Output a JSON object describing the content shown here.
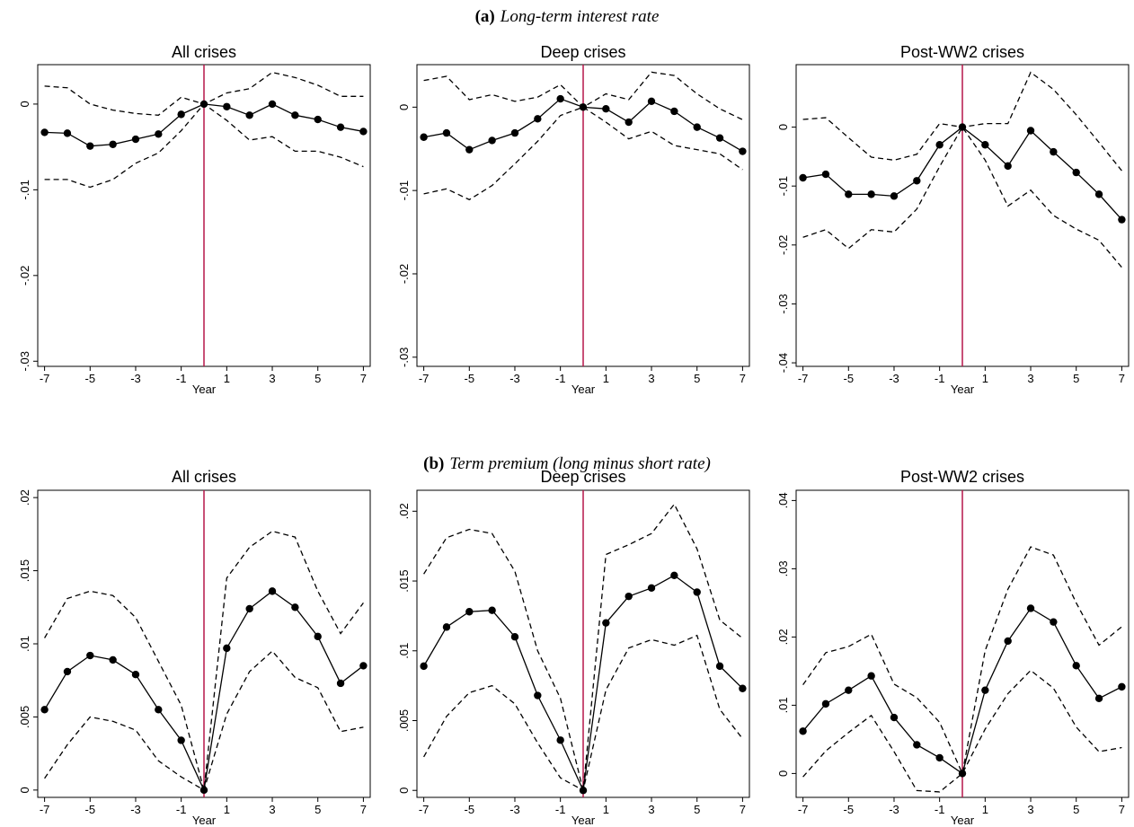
{
  "sections": [
    {
      "label": "(a)",
      "title": "Long-term interest rate"
    },
    {
      "label": "(b)",
      "title": "Term premium (long minus short rate)"
    }
  ],
  "chart_data": [
    {
      "type": "line",
      "title": "All crises",
      "xlabel": "Year",
      "x": [
        -7,
        -6,
        -5,
        -4,
        -3,
        -2,
        -1,
        0,
        1,
        2,
        3,
        4,
        5,
        6,
        7
      ],
      "xlim": [
        -7.3,
        7.3
      ],
      "xticks": [
        -7,
        -5,
        -3,
        -1,
        1,
        3,
        5,
        7
      ],
      "ylim": [
        -0.0306,
        0.0046
      ],
      "yticks": [
        {
          "value": -0.03,
          "label": "-.03"
        },
        {
          "value": -0.02,
          "label": "-.02"
        },
        {
          "value": -0.01,
          "label": "-.01"
        },
        0
      ],
      "vline": 0,
      "vline_color": "#b5174a",
      "series": [
        {
          "color": "#000000",
          "style": "solid",
          "markers": true,
          "values": [
            -0.0033,
            -0.0034,
            -0.0049,
            -0.0047,
            -0.0041,
            -0.0035,
            -0.0012,
            0,
            -0.0003,
            -0.0013,
            0,
            -0.0013,
            -0.0018,
            -0.0027,
            -0.0032
          ]
        },
        {
          "color": "#000000",
          "style": "dashed",
          "markers": false,
          "values": [
            0.0021,
            0.0019,
            0,
            -0.0007,
            -0.0011,
            -0.0013,
            0.0008,
            0,
            0.0013,
            0.0018,
            0.0037,
            0.0031,
            0.0022,
            0.0009,
            0.0009
          ]
        },
        {
          "color": "#000000",
          "style": "dashed",
          "markers": false,
          "values": [
            -0.0088,
            -0.0088,
            -0.0097,
            -0.0088,
            -0.0069,
            -0.0057,
            -0.0031,
            0,
            -0.0019,
            -0.0042,
            -0.0038,
            -0.0055,
            -0.0055,
            -0.0062,
            -0.0073
          ]
        }
      ]
    },
    {
      "type": "line",
      "title": "Deep crises",
      "xlabel": "Year",
      "x": [
        -7,
        -6,
        -5,
        -4,
        -3,
        -2,
        -1,
        0,
        1,
        2,
        3,
        4,
        5,
        6,
        7
      ],
      "xlim": [
        -7.3,
        7.3
      ],
      "xticks": [
        -7,
        -5,
        -3,
        -1,
        1,
        3,
        5,
        7
      ],
      "ylim": [
        -0.0311,
        0.0051
      ],
      "yticks": [
        {
          "value": -0.03,
          "label": "-.03"
        },
        {
          "value": -0.02,
          "label": "-.02"
        },
        {
          "value": -0.01,
          "label": "-.01"
        },
        0
      ],
      "vline": 0,
      "vline_color": "#b5174a",
      "series": [
        {
          "color": "#000000",
          "style": "solid",
          "markers": true,
          "values": [
            -0.0036,
            -0.0031,
            -0.0051,
            -0.004,
            -0.0031,
            -0.0014,
            0.001,
            0,
            -0.0002,
            -0.0018,
            0.0007,
            -0.0005,
            -0.0024,
            -0.0037,
            -0.0053
          ]
        },
        {
          "color": "#000000",
          "style": "dashed",
          "markers": false,
          "values": [
            0.0032,
            0.0037,
            0.0009,
            0.0015,
            0.0007,
            0.0012,
            0.0027,
            0,
            0.0016,
            0.0009,
            0.0042,
            0.0038,
            0.0016,
            -0.0002,
            -0.0015
          ]
        },
        {
          "color": "#000000",
          "style": "dashed",
          "markers": false,
          "values": [
            -0.0104,
            -0.0098,
            -0.0111,
            -0.0094,
            -0.0068,
            -0.0041,
            -0.001,
            0,
            -0.0018,
            -0.0038,
            -0.0029,
            -0.0046,
            -0.0051,
            -0.0056,
            -0.0075
          ]
        }
      ]
    },
    {
      "type": "line",
      "title": "Post-WW2 crises",
      "xlabel": "Year",
      "x": [
        -7,
        -6,
        -5,
        -4,
        -3,
        -2,
        -1,
        0,
        1,
        2,
        3,
        4,
        5,
        6,
        7
      ],
      "xlim": [
        -7.3,
        7.3
      ],
      "xticks": [
        -7,
        -5,
        -3,
        -1,
        1,
        3,
        5,
        7
      ],
      "ylim": [
        -0.0406,
        0.0106
      ],
      "yticks": [
        {
          "value": -0.04,
          "label": "-.04"
        },
        {
          "value": -0.03,
          "label": "-.03"
        },
        {
          "value": -0.02,
          "label": "-.02"
        },
        {
          "value": -0.01,
          "label": "-.01"
        },
        0
      ],
      "vline": 0,
      "vline_color": "#b5174a",
      "series": [
        {
          "color": "#000000",
          "style": "solid",
          "markers": true,
          "values": [
            -0.0086,
            -0.008,
            -0.0114,
            -0.0114,
            -0.0117,
            -0.0091,
            -0.003,
            0,
            -0.003,
            -0.0066,
            -0.0006,
            -0.0042,
            -0.0077,
            -0.0114,
            -0.0157
          ]
        },
        {
          "color": "#000000",
          "style": "dashed",
          "markers": false,
          "values": [
            0.0013,
            0.0016,
            -0.0018,
            -0.0051,
            -0.0056,
            -0.0046,
            0.0006,
            0,
            0.0006,
            0.0006,
            0.0093,
            0.0064,
            0.0021,
            -0.0026,
            -0.0074
          ]
        },
        {
          "color": "#000000",
          "style": "dashed",
          "markers": false,
          "values": [
            -0.0187,
            -0.0174,
            -0.0206,
            -0.0174,
            -0.0178,
            -0.0139,
            -0.0067,
            0,
            -0.0056,
            -0.0134,
            -0.0107,
            -0.015,
            -0.0173,
            -0.0192,
            -0.0238
          ]
        }
      ]
    },
    {
      "type": "line",
      "title": "All crises",
      "xlabel": "Year",
      "x": [
        -7,
        -6,
        -5,
        -4,
        -3,
        -2,
        -1,
        0,
        1,
        2,
        3,
        4,
        5,
        6,
        7
      ],
      "xlim": [
        -7.3,
        7.3
      ],
      "xticks": [
        -7,
        -5,
        -3,
        -1,
        1,
        3,
        5,
        7
      ],
      "ylim": [
        -0.0005,
        0.0205
      ],
      "yticks": [
        0,
        {
          "value": 0.005,
          "label": ".005"
        },
        {
          "value": 0.01,
          "label": ".01"
        },
        {
          "value": 0.015,
          "label": ".015"
        },
        {
          "value": 0.02,
          "label": ".02"
        }
      ],
      "vline": 0,
      "vline_color": "#b5174a",
      "series": [
        {
          "color": "#000000",
          "style": "solid",
          "markers": true,
          "values": [
            0.0055,
            0.0081,
            0.0092,
            0.0089,
            0.0079,
            0.0055,
            0.0034,
            0,
            0.0097,
            0.0124,
            0.0136,
            0.0125,
            0.0105,
            0.0073,
            0.0085
          ]
        },
        {
          "color": "#000000",
          "style": "dashed",
          "markers": false,
          "values": [
            0.0104,
            0.0131,
            0.0136,
            0.0133,
            0.0118,
            0.0088,
            0.0058,
            0,
            0.0145,
            0.0166,
            0.0177,
            0.0173,
            0.0136,
            0.0107,
            0.0128
          ]
        },
        {
          "color": "#000000",
          "style": "dashed",
          "markers": false,
          "values": [
            0.0008,
            0.0031,
            0.005,
            0.0047,
            0.0041,
            0.002,
            0.0009,
            0,
            0.0052,
            0.0081,
            0.0095,
            0.0077,
            0.007,
            0.004,
            0.0043
          ]
        }
      ]
    },
    {
      "type": "line",
      "title": "Deep crises",
      "xlabel": "Year",
      "x": [
        -7,
        -6,
        -5,
        -4,
        -3,
        -2,
        -1,
        0,
        1,
        2,
        3,
        4,
        5,
        6,
        7
      ],
      "xlim": [
        -7.3,
        7.3
      ],
      "xticks": [
        -7,
        -5,
        -3,
        -1,
        1,
        3,
        5,
        7
      ],
      "ylim": [
        -0.0005,
        0.0215
      ],
      "yticks": [
        0,
        {
          "value": 0.005,
          "label": ".005"
        },
        {
          "value": 0.01,
          "label": ".01"
        },
        {
          "value": 0.015,
          "label": ".015"
        },
        {
          "value": 0.02,
          "label": ".02"
        }
      ],
      "vline": 0,
      "vline_color": "#b5174a",
      "series": [
        {
          "color": "#000000",
          "style": "solid",
          "markers": true,
          "values": [
            0.0089,
            0.0117,
            0.0128,
            0.0129,
            0.011,
            0.0068,
            0.0036,
            0,
            0.012,
            0.0139,
            0.0145,
            0.0154,
            0.0142,
            0.0089,
            0.0073
          ]
        },
        {
          "color": "#000000",
          "style": "dashed",
          "markers": false,
          "values": [
            0.0155,
            0.0181,
            0.0187,
            0.0184,
            0.0157,
            0.01,
            0.0066,
            0,
            0.0169,
            0.0176,
            0.0184,
            0.0205,
            0.0173,
            0.0122,
            0.0109
          ]
        },
        {
          "color": "#000000",
          "style": "dashed",
          "markers": false,
          "values": [
            0.0024,
            0.0053,
            0.007,
            0.0075,
            0.0062,
            0.0034,
            0.0009,
            0,
            0.0072,
            0.0102,
            0.0108,
            0.0104,
            0.0111,
            0.0058,
            0.0037
          ]
        }
      ]
    },
    {
      "type": "line",
      "title": "Post-WW2 crises",
      "xlabel": "Year",
      "x": [
        -7,
        -6,
        -5,
        -4,
        -3,
        -2,
        -1,
        0,
        1,
        2,
        3,
        4,
        5,
        6,
        7
      ],
      "xlim": [
        -7.3,
        7.3
      ],
      "xticks": [
        -7,
        -5,
        -3,
        -1,
        1,
        3,
        5,
        7
      ],
      "ylim": [
        -0.0035,
        0.0415
      ],
      "yticks": [
        0,
        {
          "value": 0.01,
          "label": ".01"
        },
        {
          "value": 0.02,
          "label": ".02"
        },
        {
          "value": 0.03,
          "label": ".03"
        },
        {
          "value": 0.04,
          "label": ".04"
        }
      ],
      "vline": 0,
      "vline_color": "#b5174a",
      "series": [
        {
          "color": "#000000",
          "style": "solid",
          "markers": true,
          "values": [
            0.0062,
            0.0102,
            0.0122,
            0.0143,
            0.0082,
            0.0042,
            0.0023,
            0,
            0.0122,
            0.0194,
            0.0242,
            0.0222,
            0.0158,
            0.011,
            0.0127
          ]
        },
        {
          "color": "#000000",
          "style": "dashed",
          "markers": false,
          "values": [
            0.013,
            0.0177,
            0.0186,
            0.0204,
            0.0131,
            0.0111,
            0.0075,
            0,
            0.018,
            0.027,
            0.0332,
            0.032,
            0.025,
            0.0188,
            0.0215
          ]
        },
        {
          "color": "#000000",
          "style": "dashed",
          "markers": false,
          "values": [
            -0.0005,
            0.0033,
            0.006,
            0.0085,
            0.0032,
            -0.0025,
            -0.0027,
            0,
            0.0065,
            0.0117,
            0.0151,
            0.0125,
            0.0068,
            0.0032,
            0.0038
          ]
        }
      ]
    }
  ]
}
